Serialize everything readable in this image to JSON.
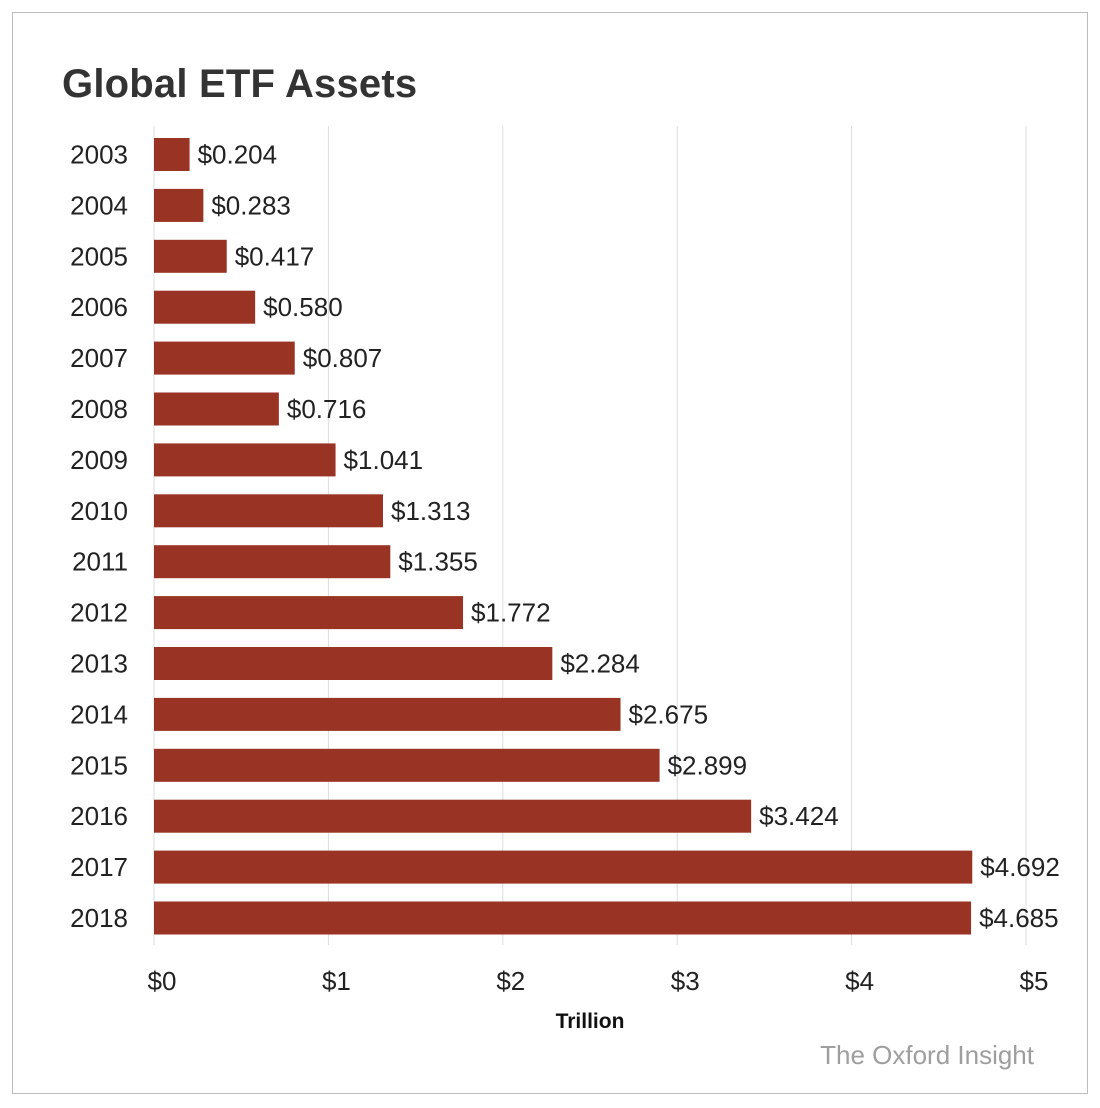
{
  "chart_data": {
    "type": "bar",
    "orientation": "horizontal",
    "title": "Global ETF Assets",
    "xlabel": "Trillion",
    "ylabel": "",
    "categories": [
      "2003",
      "2004",
      "2005",
      "2006",
      "2007",
      "2008",
      "2009",
      "2010",
      "2011",
      "2012",
      "2013",
      "2014",
      "2015",
      "2016",
      "2017",
      "2018"
    ],
    "values": [
      0.204,
      0.283,
      0.417,
      0.58,
      0.807,
      0.716,
      1.041,
      1.313,
      1.355,
      1.772,
      2.284,
      2.675,
      2.899,
      3.424,
      4.692,
      4.685
    ],
    "value_labels": [
      "$0.204",
      "$0.283",
      "$0.417",
      "$0.580",
      "$0.807",
      "$0.716",
      "$1.041",
      "$1.313",
      "$1.355",
      "$1.772",
      "$2.284",
      "$2.675",
      "$2.899",
      "$3.424",
      "$4.692",
      "$4.685"
    ],
    "xlim": [
      0,
      5
    ],
    "xticks": [
      0,
      1,
      2,
      3,
      4,
      5
    ],
    "xtick_labels": [
      "$0",
      "$1",
      "$2",
      "$3",
      "$4",
      "$5"
    ],
    "grid": true,
    "bar_color": "#993324",
    "grid_color": "#dddddd"
  },
  "source": "The Oxford Insight"
}
